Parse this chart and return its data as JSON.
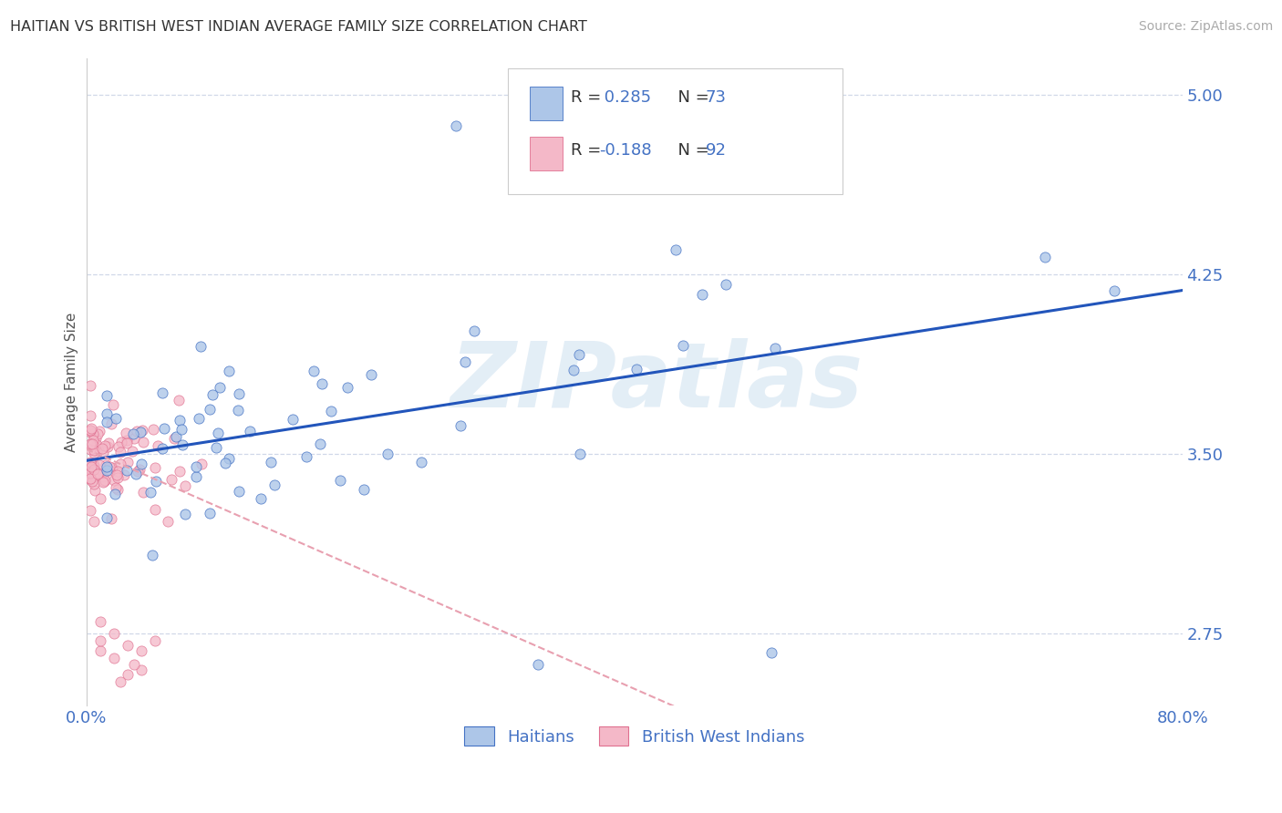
{
  "title": "HAITIAN VS BRITISH WEST INDIAN AVERAGE FAMILY SIZE CORRELATION CHART",
  "source": "Source: ZipAtlas.com",
  "ylabel": "Average Family Size",
  "xlim": [
    0.0,
    0.8
  ],
  "ylim": [
    2.45,
    5.15
  ],
  "yticks": [
    2.75,
    3.5,
    4.25,
    5.0
  ],
  "xticks": [
    0.0,
    0.1,
    0.2,
    0.3,
    0.4,
    0.5,
    0.6,
    0.7,
    0.8
  ],
  "R_haitian": 0.285,
  "N_haitian": 73,
  "R_bwi": -0.188,
  "N_bwi": 92,
  "haitian_color": "#adc6e8",
  "haitian_edge": "#4472c4",
  "bwi_color": "#f4b8c8",
  "bwi_edge": "#e07090",
  "trend_haitian_color": "#2255bb",
  "trend_bwi_color": "#e8a0b0",
  "text_blue": "#4472c4",
  "text_dark": "#333333",
  "tick_color": "#4472c4",
  "grid_color": "#d0d8e8",
  "watermark_color": "#d5e5f2",
  "legend_label_haitian": "Haitians",
  "legend_label_bwi": "British West Indians",
  "background_color": "#ffffff"
}
